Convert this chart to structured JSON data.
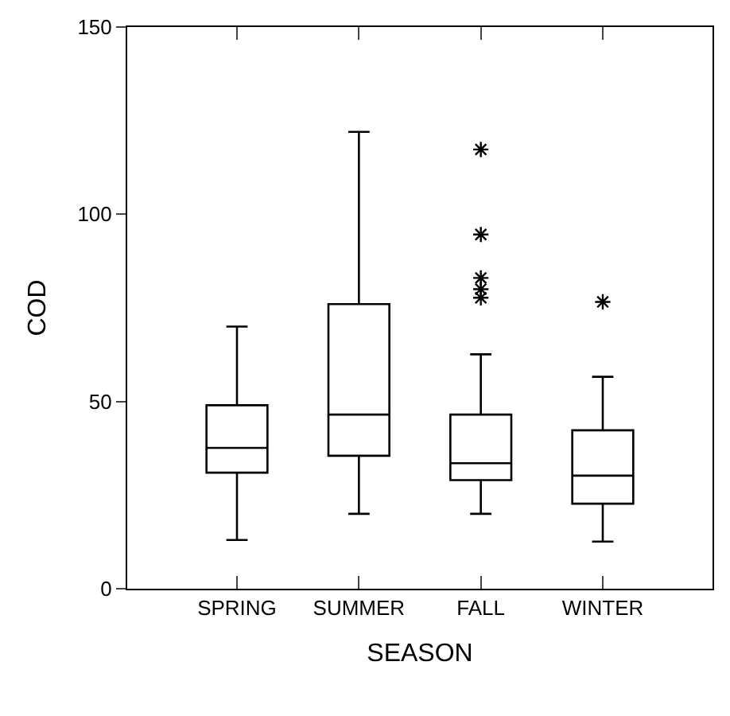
{
  "chart_data": {
    "type": "box",
    "xlabel": "SEASON",
    "ylabel": "COD",
    "categories": [
      "SPRING",
      "SUMMER",
      "FALL",
      "WINTER"
    ],
    "boxes": [
      {
        "low": 13,
        "q1": 31,
        "median": 37.6,
        "q3": 49,
        "high": 70
      },
      {
        "low": 20,
        "q1": 35.5,
        "median": 46.5,
        "q3": 76,
        "high": 122
      },
      {
        "low": 20,
        "q1": 29,
        "median": 33.5,
        "q3": 46.5,
        "high": 62.6,
        "outliers": [
          117.3,
          94.6,
          83,
          80,
          77.7
        ]
      },
      {
        "low": 12.6,
        "q1": 22.7,
        "median": 30.2,
        "q3": 42.3,
        "high": 56.6,
        "outliers": [
          76.6
        ]
      }
    ],
    "color": "#000000",
    "ylim": [
      0,
      150
    ],
    "yticks": [
      0,
      50,
      100,
      150
    ],
    "marker": "star"
  }
}
